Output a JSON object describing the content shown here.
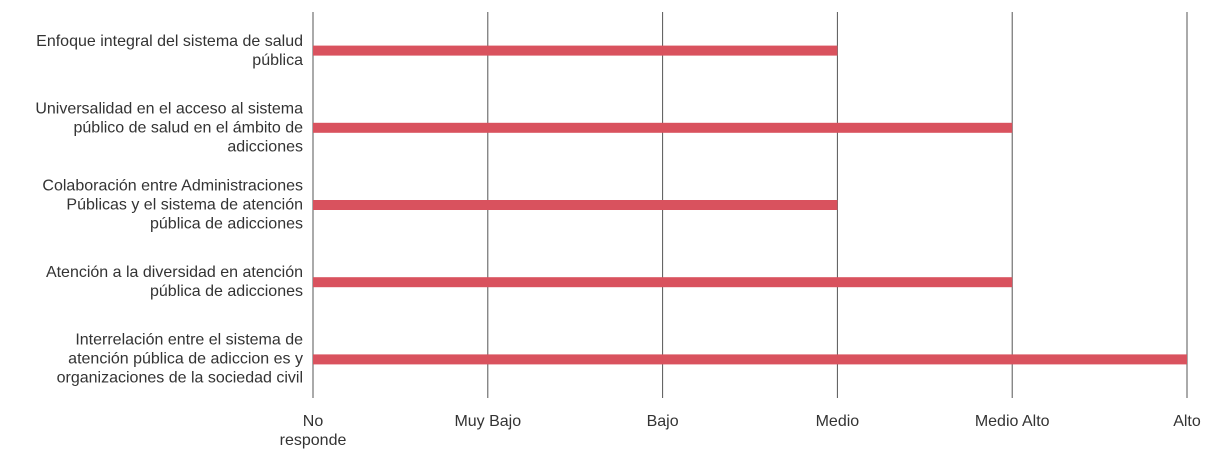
{
  "chart_data": {
    "type": "bar",
    "orientation": "horizontal",
    "categories": [
      "Enfoque integral del sistema de salud pública",
      "Universalidad en el acceso al sistema público de salud en el ámbito de adicciones",
      "Colaboración entre Administraciones Públicas y el sistema de atención pública de adicciones",
      "Atención a la diversidad en atención pública de adicciones",
      "Interrelación entre el sistema de atención pública de adiccion es y organizaciones de la sociedad civil"
    ],
    "values": [
      3,
      4,
      3,
      4,
      5
    ],
    "color": "#d9525e",
    "xlim": [
      0,
      5
    ],
    "xticks": [
      {
        "value": 0,
        "label": "No responde"
      },
      {
        "value": 1,
        "label": "Muy Bajo"
      },
      {
        "value": 2,
        "label": "Bajo"
      },
      {
        "value": 3,
        "label": "Medio"
      },
      {
        "value": 4,
        "label": "Medio Alto"
      },
      {
        "value": 5,
        "label": "Alto"
      }
    ],
    "grid": true
  }
}
